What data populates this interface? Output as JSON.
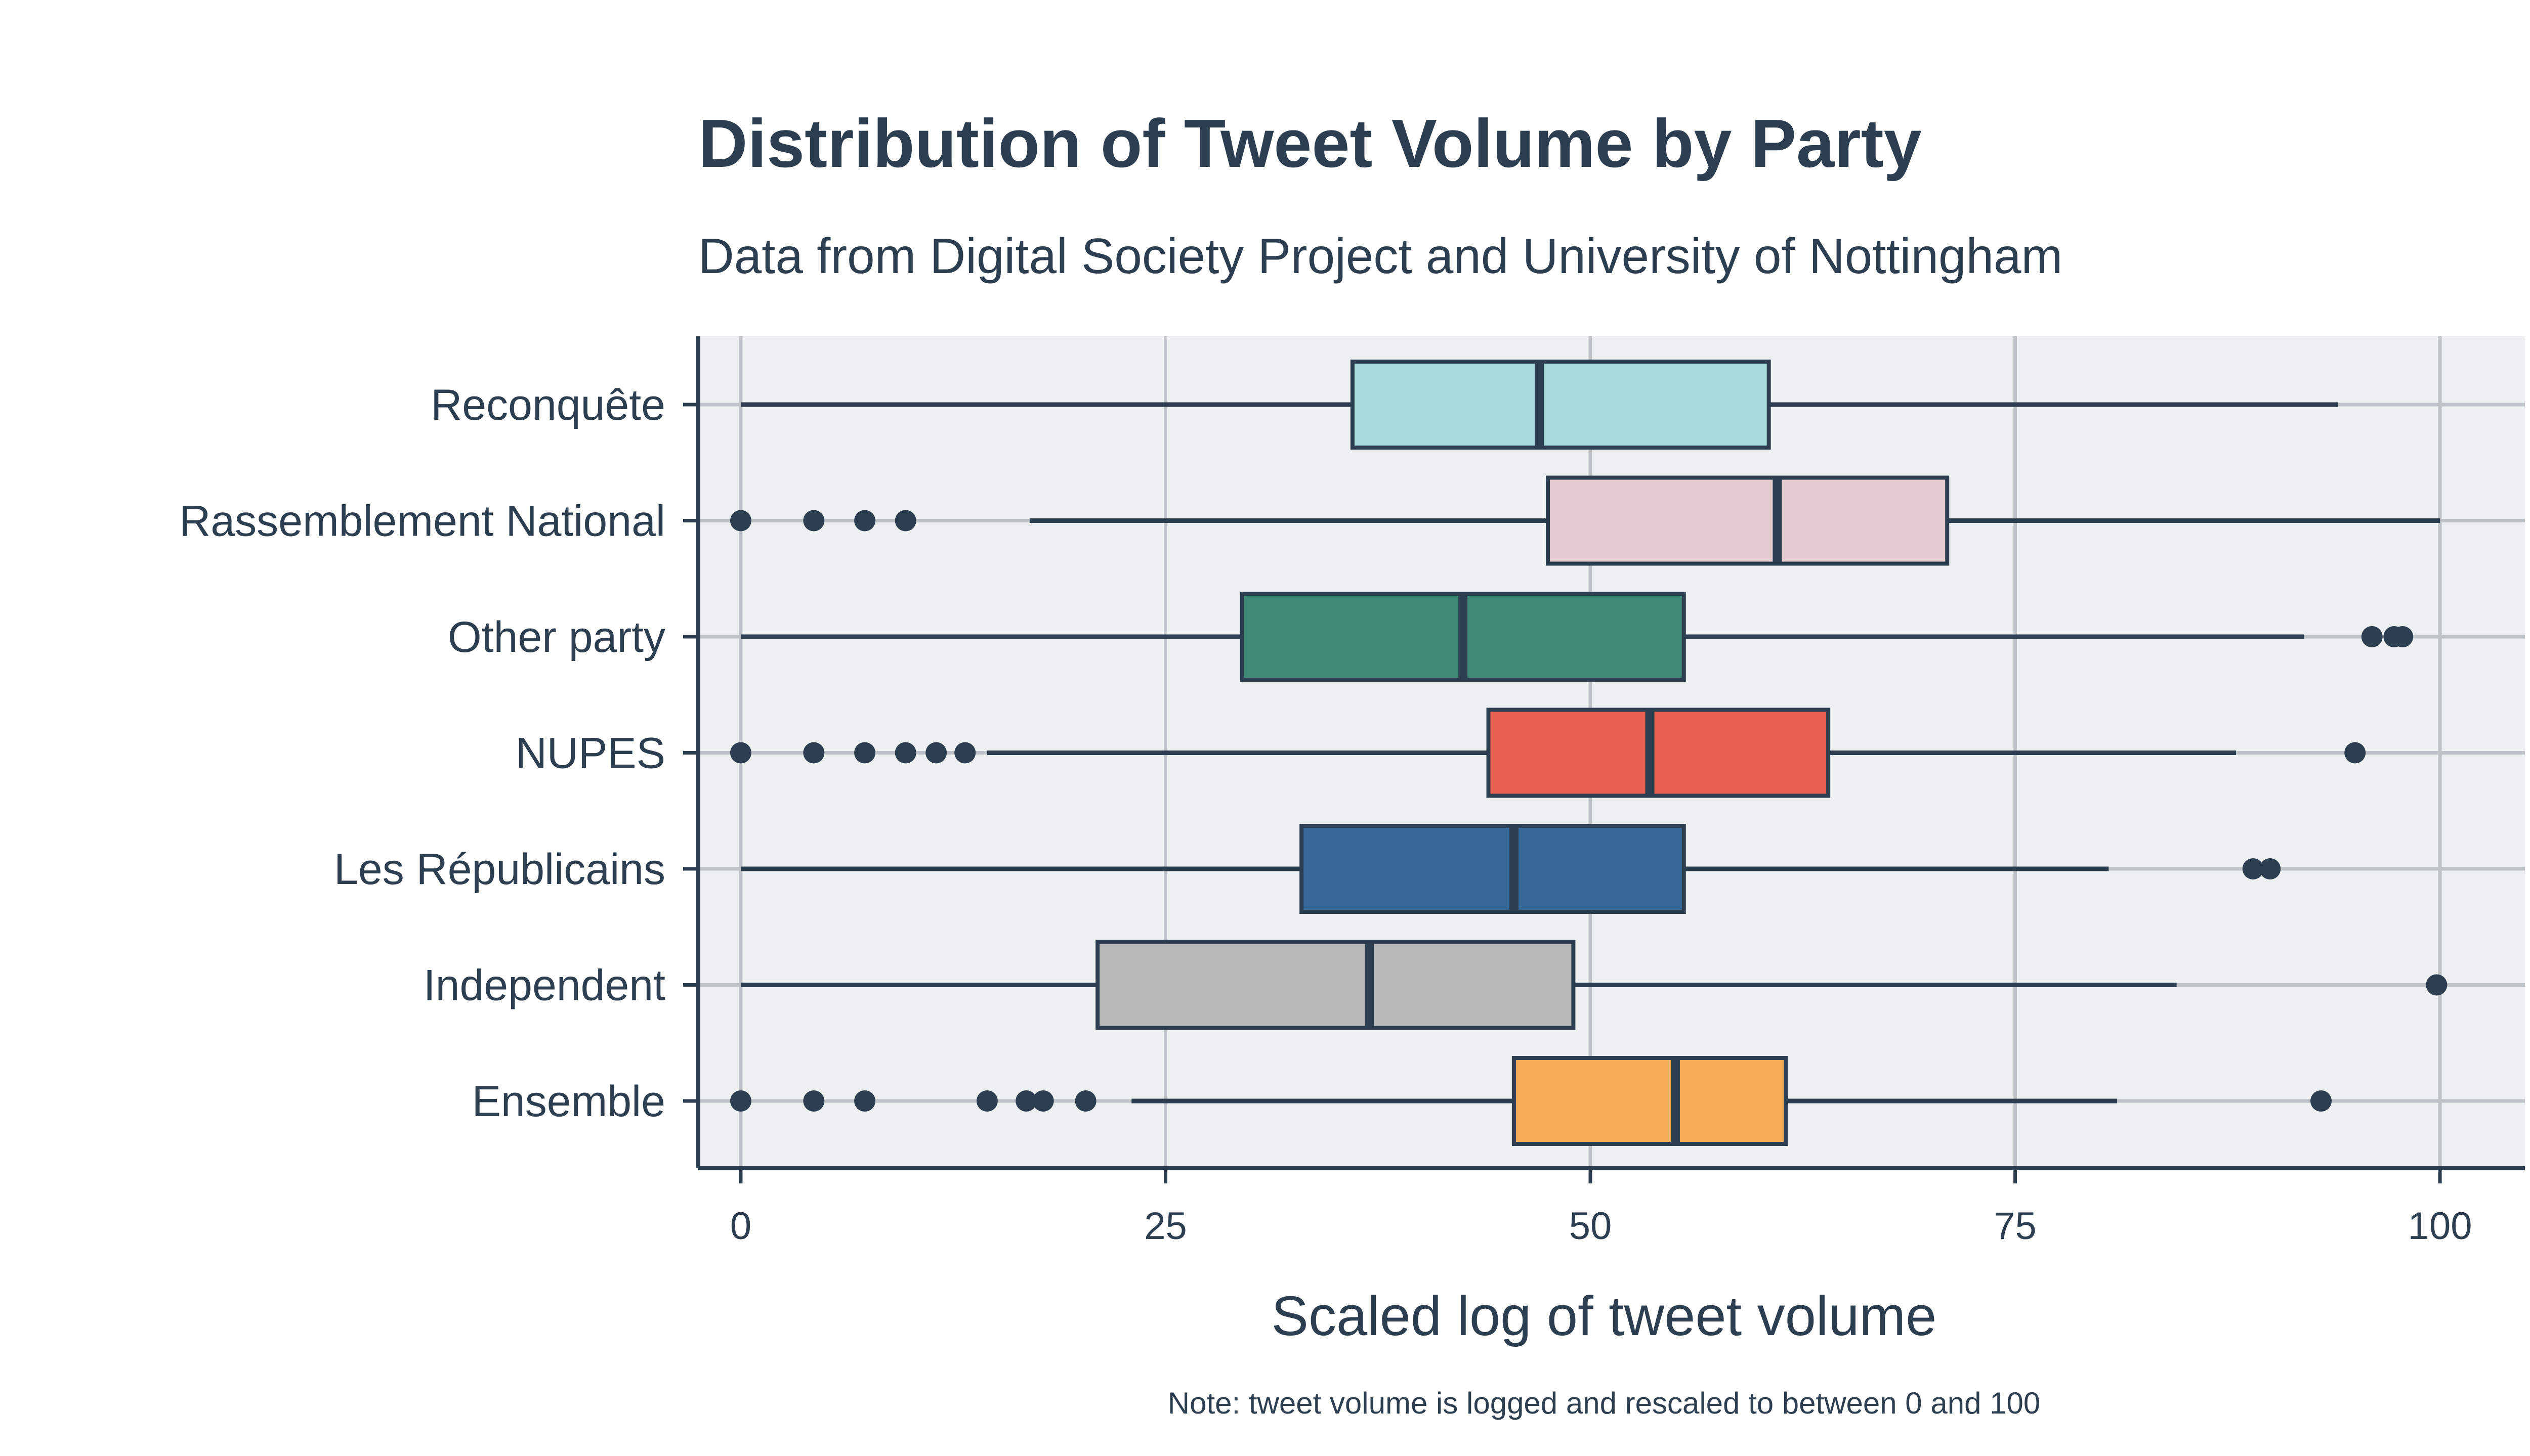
{
  "chart_data": {
    "type": "boxplot",
    "title": "Distribution of Tweet Volume by Party",
    "subtitle": "Data from Digital Society Project and University of Nottingham",
    "xlabel": "Scaled log of tweet volume",
    "note": "Note: tweet volume is logged and rescaled to between 0 and 100",
    "xlim": [
      -2.5,
      105
    ],
    "xticks": [
      0,
      25,
      50,
      75,
      100
    ],
    "orientation": "horizontal",
    "grid": true,
    "colors": {
      "background": "#ffffff",
      "panel": "#ecf0f1",
      "grid": "#bdc3c7",
      "ink": "#2c3e50"
    },
    "categories": [
      "Reconquête",
      "Rassemblement National",
      "Other party",
      "NUPES",
      "Les Républicains",
      "Independent",
      "Ensemble"
    ],
    "boxes": [
      {
        "category": "Reconquête",
        "whisker_low": 0,
        "q1": 36,
        "median": 47,
        "q3": 60.5,
        "whisker_high": 94,
        "outliers": [],
        "color": "#a8dadc"
      },
      {
        "category": "Rassemblement National",
        "whisker_low": 17,
        "q1": 47.5,
        "median": 61,
        "q3": 71,
        "whisker_high": 100,
        "outliers": [
          0,
          4.3,
          7.3,
          9.7
        ],
        "color": "#e4ccd0"
      },
      {
        "category": "Other party",
        "whisker_low": 0,
        "q1": 29.5,
        "median": 42.5,
        "q3": 55.5,
        "whisker_high": 92,
        "outliers": [
          96,
          97.3,
          97.8
        ],
        "color": "#3f8a77"
      },
      {
        "category": "NUPES",
        "whisker_low": 14.5,
        "q1": 44,
        "median": 53.5,
        "q3": 64,
        "whisker_high": 88,
        "outliers": [
          0,
          4.3,
          7.3,
          9.7,
          11.5,
          13.2,
          95
        ],
        "color": "#e76050"
      },
      {
        "category": "Les Républicains",
        "whisker_low": 0,
        "q1": 33,
        "median": 45.5,
        "q3": 55.5,
        "whisker_high": 80.5,
        "outliers": [
          89,
          90
        ],
        "color": "#366899"
      },
      {
        "category": "Independent",
        "whisker_low": 0,
        "q1": 21,
        "median": 37,
        "q3": 49,
        "whisker_high": 84.5,
        "outliers": [
          99.8
        ],
        "color": "#b9b9b9"
      },
      {
        "category": "Ensemble",
        "whisker_low": 23,
        "q1": 45.5,
        "median": 55,
        "q3": 61.5,
        "whisker_high": 81,
        "outliers": [
          0,
          4.3,
          7.3,
          14.5,
          16.8,
          17.8,
          20.3,
          93
        ],
        "color": "#f5ab58"
      }
    ]
  }
}
